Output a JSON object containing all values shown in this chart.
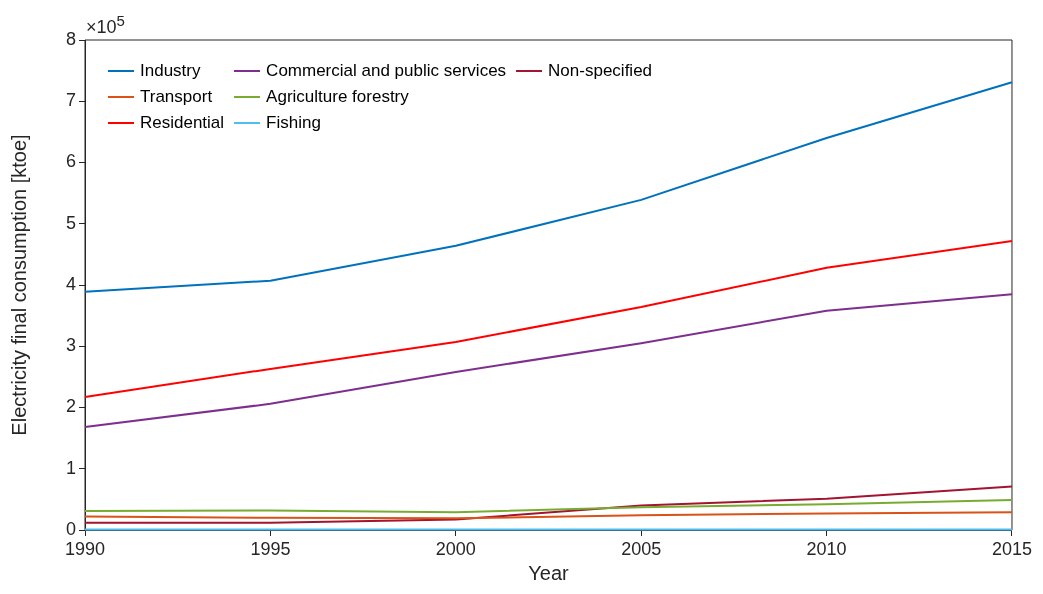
{
  "chart_data": {
    "type": "line",
    "xlabel": "Year",
    "ylabel": "Electricity final consumption [ktoe]",
    "annotations": [
      "×10$^{5}$"
    ],
    "x": [
      1990,
      1995,
      2000,
      2005,
      2010,
      2015
    ],
    "xlim": [
      1990,
      2015
    ],
    "xticks": [
      1990,
      1995,
      2000,
      2005,
      2010,
      2015
    ],
    "ylim": [
      0,
      8
    ],
    "yticks": [
      0,
      1,
      2,
      3,
      4,
      5,
      6,
      7,
      8
    ],
    "grid": false,
    "legend": "top left",
    "marker": "none",
    "line_style": "solid",
    "series": [
      {
        "name": "Industry",
        "color": "#0072bd",
        "values": [
          3.89,
          4.07,
          4.64,
          5.39,
          6.4,
          7.31
        ]
      },
      {
        "name": "Transport",
        "color": "#d95319",
        "values": [
          0.22,
          0.2,
          0.19,
          0.24,
          0.27,
          0.29
        ]
      },
      {
        "name": "Residential",
        "color": "#ff0000",
        "values": [
          2.17,
          2.63,
          3.07,
          3.64,
          4.28,
          4.72
        ]
      },
      {
        "name": "Commercial and public services",
        "color": "#7e2f8e",
        "values": [
          1.68,
          2.06,
          2.58,
          3.05,
          3.58,
          3.85
        ]
      },
      {
        "name": "Agriculture forestry",
        "color": "#77ac30",
        "values": [
          0.31,
          0.32,
          0.29,
          0.37,
          0.42,
          0.49
        ]
      },
      {
        "name": "Fishing",
        "color": "#4dbeee",
        "values": [
          0.01,
          0.01,
          0.01,
          0.01,
          0.01,
          0.01
        ]
      },
      {
        "name": "Non-specified",
        "color": "#a2142f",
        "values": [
          0.12,
          0.12,
          0.17,
          0.4,
          0.51,
          0.71
        ]
      }
    ]
  }
}
